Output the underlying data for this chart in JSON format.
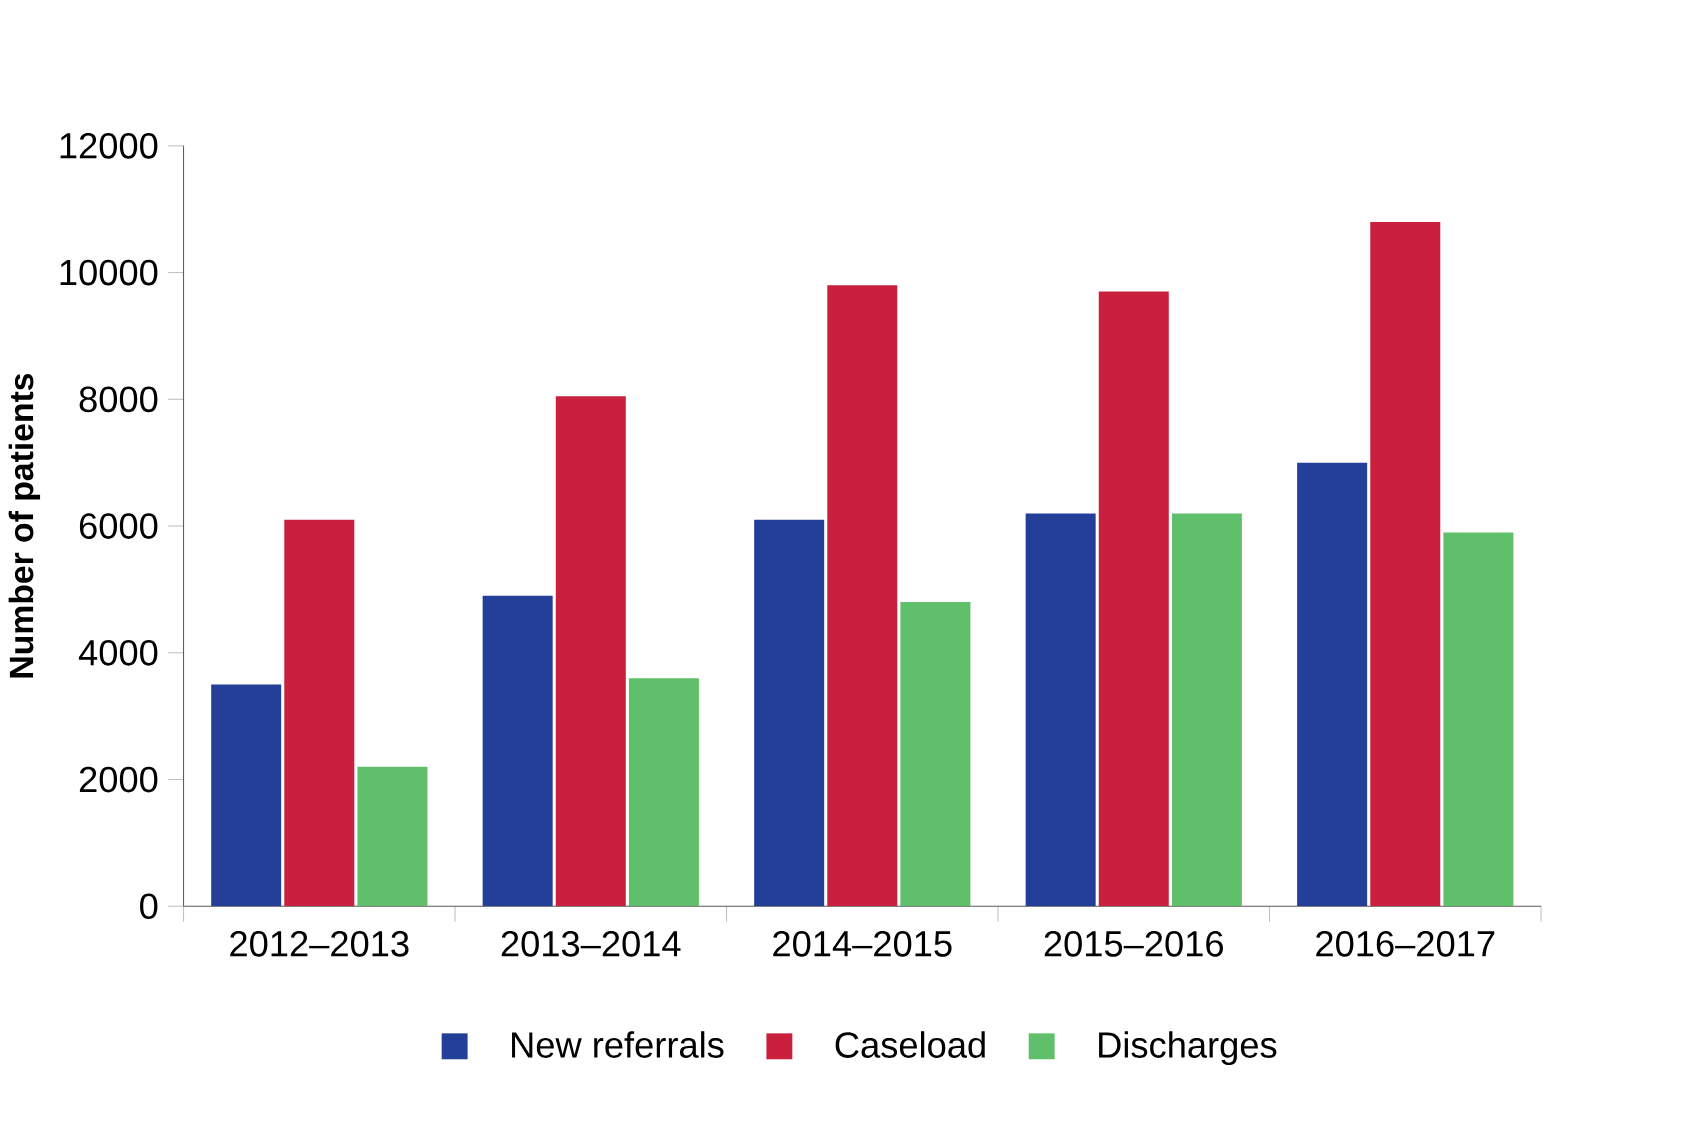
{
  "chart_data": {
    "type": "bar",
    "ylabel": "**Number of patients**",
    "categories": [
      "2012–2013",
      "2013–2014",
      "2014–2015",
      "2015–2016",
      "2016–2017"
    ],
    "series": [
      {
        "name": "New referrals",
        "color": "#233f97",
        "values": [
          3500,
          4900,
          6100,
          6200,
          7000
        ]
      },
      {
        "name": "Caseload",
        "color": "#c8203d",
        "values": [
          6100,
          8050,
          9800,
          9700,
          10800
        ]
      },
      {
        "name": "Discharges",
        "color": "#5fbf6a",
        "values": [
          2200,
          3600,
          4800,
          6200,
          5900
        ]
      }
    ],
    "ylim": [
      0,
      12000
    ],
    "yticks": [
      0,
      2000,
      4000,
      6000,
      8000,
      10000,
      12000
    ],
    "grid": false,
    "legend": "bottom"
  }
}
